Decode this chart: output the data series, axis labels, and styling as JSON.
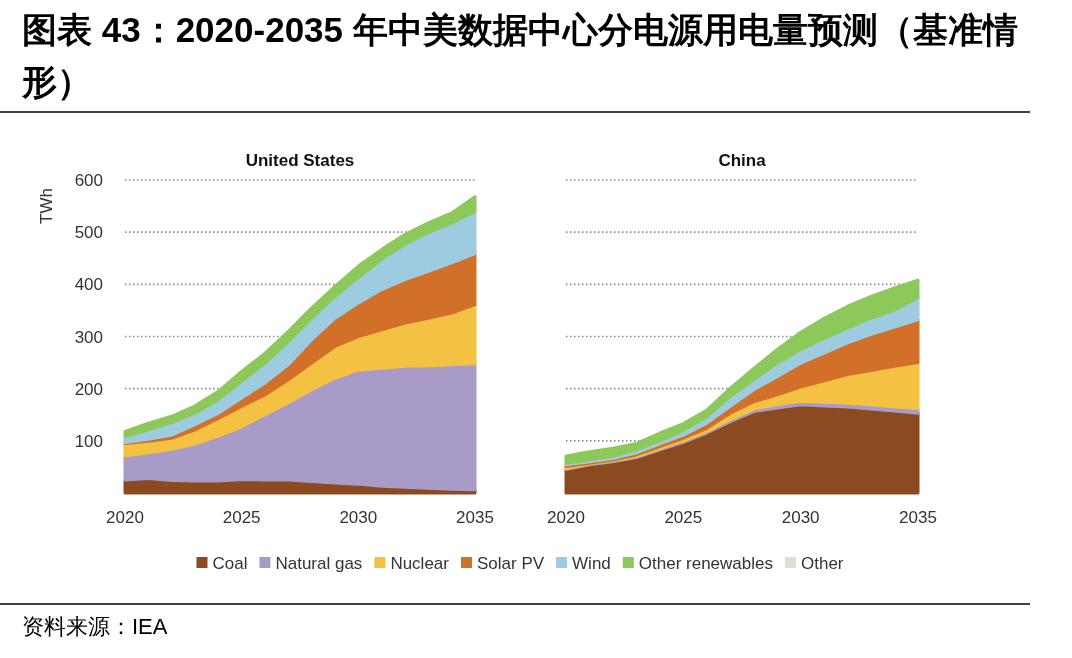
{
  "chart_data": [
    {
      "type": "area",
      "title": "图表 43：2020-2035 年中美数据中心分电源用电量预测（基准情形）",
      "subtitle": "United States",
      "ylabel": "TWh",
      "stacked": true,
      "grid": "y",
      "legend": "bottom",
      "x": [
        2020,
        2021,
        2022,
        2023,
        2024,
        2025,
        2026,
        2027,
        2028,
        2029,
        2030,
        2031,
        2032,
        2033,
        2034,
        2035
      ],
      "xlim": [
        2020,
        2035
      ],
      "xticks": [
        2020,
        2025,
        2030,
        2035
      ],
      "ylim": [
        0,
        600
      ],
      "yticks": [
        100,
        200,
        300,
        400,
        500,
        600
      ],
      "series": [
        {
          "name": "Coal",
          "color": "#8b4a1f",
          "values": [
            25,
            28,
            24,
            23,
            23,
            26,
            25,
            25,
            22,
            19,
            17,
            13,
            11,
            9,
            7,
            6
          ]
        },
        {
          "name": "Natural gas",
          "color": "#a99bc7",
          "values": [
            46,
            49,
            60,
            71,
            86,
            101,
            125,
            148,
            176,
            201,
            219,
            226,
            232,
            235,
            239,
            242
          ]
        },
        {
          "name": "Nuclear",
          "color": "#f4c242",
          "values": [
            24,
            22,
            21,
            27,
            34,
            39,
            38,
            44,
            51,
            61,
            64,
            74,
            83,
            91,
            99,
            113
          ]
        },
        {
          "name": "Solar PV",
          "color": "#d2702a",
          "values": [
            2,
            4,
            6,
            10,
            10,
            16,
            23,
            29,
            45,
            54,
            64,
            77,
            83,
            90,
            96,
            98
          ]
        },
        {
          "name": "Wind",
          "color": "#9dcbe0",
          "values": [
            11,
            18,
            24,
            22,
            26,
            32,
            38,
            44,
            41,
            42,
            49,
            58,
            68,
            74,
            77,
            81
          ]
        },
        {
          "name": "Other renewables",
          "color": "#8cc85a",
          "values": [
            10,
            13,
            12,
            14,
            16,
            19,
            19,
            20,
            20,
            19,
            22,
            19,
            19,
            19,
            19,
            28
          ]
        },
        {
          "name": "Other",
          "color": "#d9e2cc",
          "values": [
            null,
            null,
            null,
            null,
            null,
            null,
            null,
            null,
            null,
            null,
            null,
            null,
            null,
            null,
            null,
            null
          ]
        }
      ],
      "annotations": [
        "资料来源：IEA"
      ]
    },
    {
      "type": "area",
      "title": "China",
      "stacked": true,
      "grid": "y",
      "tick_labels": "x",
      "x": [
        2020,
        2021,
        2022,
        2023,
        2024,
        2025,
        2026,
        2027,
        2028,
        2029,
        2030,
        2031,
        2032,
        2033,
        2034,
        2035
      ],
      "xlim": [
        2020,
        2035
      ],
      "xticks": [
        2020,
        2025,
        2030,
        2035
      ],
      "ylim": [
        0,
        600
      ],
      "yticks": [
        100,
        200,
        300,
        400,
        500,
        600
      ],
      "series": [
        {
          "color": "#8b4a1f",
          "values": [
            45,
            54,
            60,
            68,
            83,
            97,
            115,
            137,
            156,
            163,
            169,
            167,
            165,
            161,
            157,
            153
          ]
        },
        {
          "color": "#a99bc7",
          "values": [
            2,
            2,
            2,
            2,
            2,
            3,
            3,
            4,
            5,
            6,
            7,
            7,
            7,
            8,
            8,
            9
          ]
        },
        {
          "color": "#f4c242",
          "values": [
            4,
            1,
            1,
            3,
            4,
            5,
            6,
            12,
            14,
            19,
            27,
            41,
            55,
            66,
            78,
            88
          ]
        },
        {
          "color": "#d2702a",
          "values": [
            3,
            3,
            3,
            4,
            5,
            6,
            10,
            13,
            23,
            35,
            46,
            53,
            61,
            69,
            75,
            82
          ]
        },
        {
          "color": "#9dcbe0",
          "values": [
            3,
            3,
            5,
            6,
            6,
            9,
            12,
            19,
            19,
            26,
            26,
            29,
            28,
            31,
            33,
            43
          ]
        },
        {
          "color": "#8cc85a",
          "values": [
            14,
            16,
            15,
            12,
            15,
            13,
            13,
            16,
            22,
            26,
            33,
            38,
            42,
            42,
            42,
            33
          ]
        }
      ]
    }
  ]
}
